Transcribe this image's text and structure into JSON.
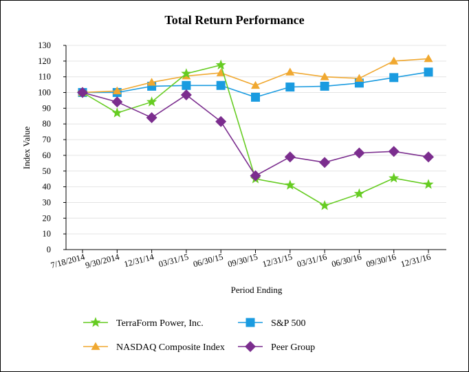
{
  "chart_data": {
    "type": "line",
    "title": "Total Return Performance",
    "xlabel": "Period Ending",
    "ylabel": "Index Value",
    "ylim": [
      0,
      130
    ],
    "ytick_step": 10,
    "grid": true,
    "legend_position": "bottom",
    "categories": [
      "7/18/2014",
      "9/30/2014",
      "12/31/14",
      "03/31/15",
      "06/30/15",
      "09/30/15",
      "12/31/15",
      "03/31/16",
      "06/30/16",
      "09/30/16",
      "12/31/16"
    ],
    "series": [
      {
        "name": "TerraForm Power, Inc.",
        "color": "#66cc22",
        "marker": "star",
        "values": [
          100,
          87,
          94,
          112,
          117.5,
          45,
          41,
          28,
          35.5,
          45.5,
          41.5
        ]
      },
      {
        "name": "S&P 500",
        "color": "#1a9be0",
        "marker": "square",
        "values": [
          100,
          100,
          104,
          104.5,
          104.5,
          97,
          103.5,
          104,
          106,
          109.5,
          113
        ]
      },
      {
        "name": "NASDAQ Composite Index",
        "color": "#f0a830",
        "marker": "triangle",
        "values": [
          100,
          101,
          106.5,
          110.5,
          112.5,
          104.5,
          113,
          110,
          109,
          120,
          121.5
        ]
      },
      {
        "name": "Peer Group",
        "color": "#7b2d8e",
        "marker": "diamond",
        "values": [
          100,
          94,
          84,
          98.5,
          81.5,
          47,
          59,
          55.5,
          61.5,
          62.5,
          59
        ]
      }
    ]
  }
}
